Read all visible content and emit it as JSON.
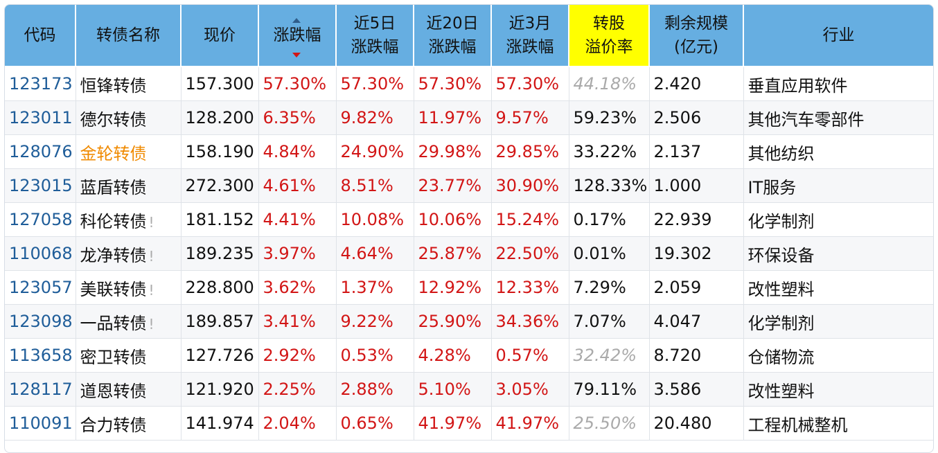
{
  "headers": {
    "code": "代码",
    "name": "转债名称",
    "price": "现价",
    "change": "涨跌幅",
    "chg5_line1": "近5日",
    "chg5_line2": "涨跌幅",
    "chg20_line1": "近20日",
    "chg20_line2": "涨跌幅",
    "chg3m_line1": "近3月",
    "chg3m_line2": "涨跌幅",
    "premium_line1": "转股",
    "premium_line2": "溢价率",
    "scale_line1": "剩余规模",
    "scale_line2": "(亿元)",
    "industry": "行业"
  },
  "sort": {
    "column": "change",
    "direction": "desc"
  },
  "colors": {
    "header_bg": "#66aee1",
    "highlight": "#ffff00",
    "up": "#d21515",
    "code": "#1f5d99",
    "name_highlight": "#f08a00",
    "muted": "#aaaaaa"
  },
  "rows": [
    {
      "code": "123173",
      "name": "恒锋转债",
      "warn": "",
      "price": "157.300",
      "change": "57.30%",
      "chg5": "57.30%",
      "chg20": "57.30%",
      "chg3m": "57.30%",
      "premium": "44.18%",
      "premium_muted": true,
      "scale": "2.420",
      "industry": "垂直应用软件"
    },
    {
      "code": "123011",
      "name": "德尔转债",
      "warn": "",
      "price": "128.200",
      "change": "6.35%",
      "chg5": "9.82%",
      "chg20": "11.97%",
      "chg3m": "9.57%",
      "premium": "59.23%",
      "premium_muted": false,
      "scale": "2.506",
      "industry": "其他汽车零部件"
    },
    {
      "code": "128076",
      "name": "金轮转债",
      "warn": "",
      "name_highlight": true,
      "price": "158.190",
      "change": "4.84%",
      "chg5": "24.90%",
      "chg20": "29.98%",
      "chg3m": "29.85%",
      "premium": "33.22%",
      "premium_muted": false,
      "scale": "2.137",
      "industry": "其他纺织"
    },
    {
      "code": "123015",
      "name": "蓝盾转债",
      "warn": "",
      "price": "272.300",
      "change": "4.61%",
      "chg5": "8.51%",
      "chg20": "23.77%",
      "chg3m": "30.90%",
      "premium": "128.33%",
      "premium_muted": false,
      "scale": "1.000",
      "industry": "IT服务"
    },
    {
      "code": "127058",
      "name": "科伦转债",
      "warn": "!",
      "price": "181.152",
      "change": "4.41%",
      "chg5": "10.08%",
      "chg20": "10.06%",
      "chg3m": "15.24%",
      "premium": "0.17%",
      "premium_muted": false,
      "scale": "22.939",
      "industry": "化学制剂"
    },
    {
      "code": "110068",
      "name": "龙净转债",
      "warn": "!",
      "price": "189.235",
      "change": "3.97%",
      "chg5": "4.64%",
      "chg20": "25.87%",
      "chg3m": "22.50%",
      "premium": "0.01%",
      "premium_muted": false,
      "scale": "19.302",
      "industry": "环保设备"
    },
    {
      "code": "123057",
      "name": "美联转债",
      "warn": "!",
      "price": "228.800",
      "change": "3.62%",
      "chg5": "1.37%",
      "chg20": "12.92%",
      "chg3m": "12.33%",
      "premium": "7.29%",
      "premium_muted": false,
      "scale": "2.059",
      "industry": "改性塑料"
    },
    {
      "code": "123098",
      "name": "一品转债",
      "warn": "!",
      "price": "189.857",
      "change": "3.41%",
      "chg5": "9.22%",
      "chg20": "25.90%",
      "chg3m": "34.36%",
      "premium": "7.07%",
      "premium_muted": false,
      "scale": "4.047",
      "industry": "化学制剂"
    },
    {
      "code": "113658",
      "name": "密卫转债",
      "warn": "",
      "price": "127.726",
      "change": "2.92%",
      "chg5": "0.53%",
      "chg20": "4.28%",
      "chg3m": "0.57%",
      "premium": "32.42%",
      "premium_muted": true,
      "scale": "8.720",
      "industry": "仓储物流"
    },
    {
      "code": "128117",
      "name": "道恩转债",
      "warn": "",
      "price": "121.920",
      "change": "2.25%",
      "chg5": "2.88%",
      "chg20": "5.10%",
      "chg3m": "3.05%",
      "premium": "79.11%",
      "premium_muted": false,
      "scale": "3.586",
      "industry": "改性塑料"
    },
    {
      "code": "110091",
      "name": "合力转债",
      "warn": "",
      "price": "141.974",
      "change": "2.04%",
      "chg5": "0.65%",
      "chg20": "41.97%",
      "chg3m": "41.97%",
      "premium": "25.50%",
      "premium_muted": true,
      "scale": "20.480",
      "industry": "工程机械整机"
    }
  ]
}
